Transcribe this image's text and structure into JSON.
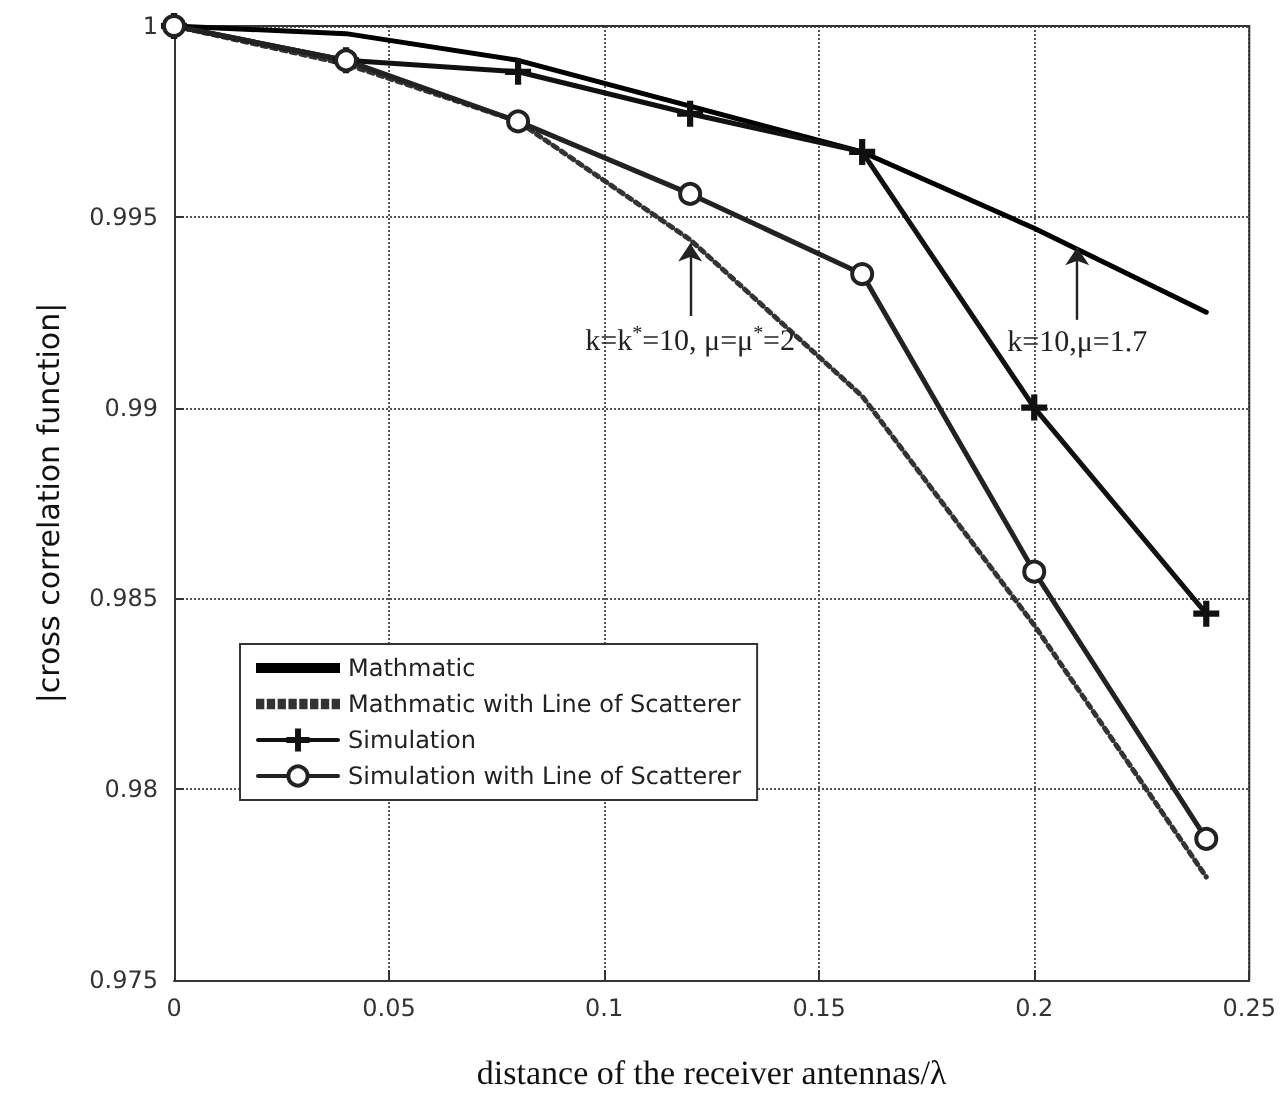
{
  "chart_data": {
    "type": "line",
    "xlabel": "distance of the receiver antennas/λ",
    "ylabel": "|cross correlation function|",
    "x": [
      0,
      0.04,
      0.08,
      0.12,
      0.16,
      0.2,
      0.24
    ],
    "series": [
      {
        "name": "Mathmatic",
        "color": "#000000",
        "marker": "none",
        "line_style": "solid",
        "values": [
          1,
          0.9998,
          0.9991,
          0.9979,
          0.9967,
          0.9947,
          0.9925
        ]
      },
      {
        "name": "Mathmatic with Line of Scatterer",
        "color": "#333333",
        "marker": "none",
        "line_style": "dotted",
        "values": [
          1,
          0.999,
          0.9975,
          0.9944,
          0.9903,
          0.9843,
          0.9777
        ]
      },
      {
        "name": "Simulation",
        "color": "#111111",
        "marker": "cross",
        "line_style": "solid",
        "values": [
          1,
          0.9991,
          0.9988,
          0.9977,
          0.9967,
          0.99,
          0.9846
        ]
      },
      {
        "name": "Simulation with Line of Scatterer",
        "color": "#222222",
        "marker": "circle",
        "line_style": "solid",
        "values": [
          1,
          0.9991,
          0.9975,
          0.9956,
          0.9935,
          0.9857,
          0.9787
        ]
      }
    ],
    "xlim": [
      0,
      0.25
    ],
    "xticks": [
      0,
      0.05,
      0.1,
      0.15,
      0.2,
      0.25
    ],
    "ylim": [
      0.975,
      1
    ],
    "yticks": [
      0.975,
      0.98,
      0.985,
      0.99,
      0.995,
      1
    ],
    "grid": true,
    "legend": "bottom left",
    "annotations": [
      {
        "text": "k=k$^{*}$=10, μ=μ$^{*}$=2",
        "x": 0.12,
        "y": 0.9944
      },
      {
        "text": "k=10,μ=1.7",
        "x": 0.21,
        "y": 0.9943
      }
    ]
  }
}
